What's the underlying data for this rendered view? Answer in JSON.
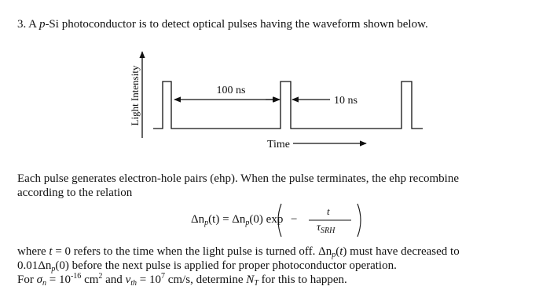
{
  "question": {
    "intro": [
      "3. A ",
      "p",
      "-Si photoconductor is to detect optical pulses having the waveform shown below."
    ]
  },
  "figure": {
    "y_label": "Light Intensity",
    "period_label": "100 ns",
    "width_label": "10 ns",
    "x_label": "Time"
  },
  "paragraph1": [
    "Each pulse generates electron-hole pairs (ehp). When the pulse terminates, the ehp recombine",
    "according to the relation"
  ],
  "equation": [
    "Δn",
    "p",
    "(t) = Δn",
    "p",
    "(0) exp",
    "−",
    "t",
    "τ",
    "SRH"
  ],
  "paragraph2": [
    [
      "where ",
      "t",
      " = 0 refers to the time when the light pulse is turned off. Δn",
      "p",
      "(",
      "t",
      ") must have decreased to"
    ],
    [
      "0.01Δn",
      "p",
      "(0) before the next pulse is applied for proper photoconductor operation."
    ],
    [
      "For ",
      "σ",
      "n",
      " = 10",
      "-16",
      " cm",
      "2",
      " and ",
      "v",
      "th",
      " = 10",
      "7",
      " cm/s, determine ",
      "N",
      "T",
      " for this to happen."
    ]
  ]
}
